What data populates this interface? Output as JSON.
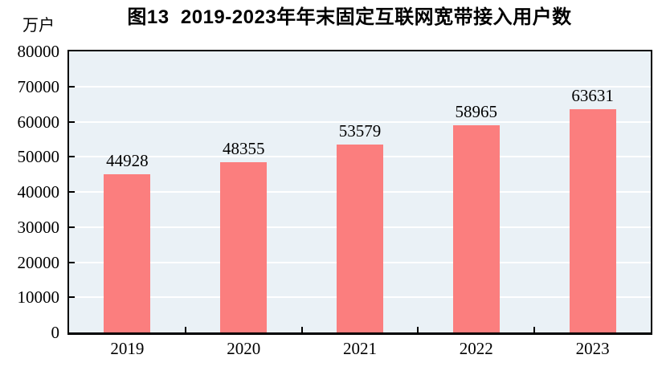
{
  "chart_data": {
    "type": "bar",
    "title": "图13  2019-2023年年末固定互联网宽带接入用户数",
    "unit_label": "万户",
    "categories": [
      "2019",
      "2020",
      "2021",
      "2022",
      "2023"
    ],
    "values": [
      44928,
      48355,
      53579,
      58965,
      63631
    ],
    "value_labels": [
      "44928",
      "48355",
      "53579",
      "58965",
      "63631"
    ],
    "xlabel": "",
    "ylabel": "万户",
    "ylim": [
      0,
      80000
    ],
    "ytick_interval": 10000,
    "yticks": [
      0,
      10000,
      20000,
      30000,
      40000,
      50000,
      60000,
      70000,
      80000
    ],
    "grid": "on",
    "legend": "none",
    "colors": {
      "bar": "#fb7e7e",
      "plot_bg": "#eaf1f6",
      "grid": "#ffffff",
      "axis": "#000000",
      "text": "#000000"
    }
  }
}
